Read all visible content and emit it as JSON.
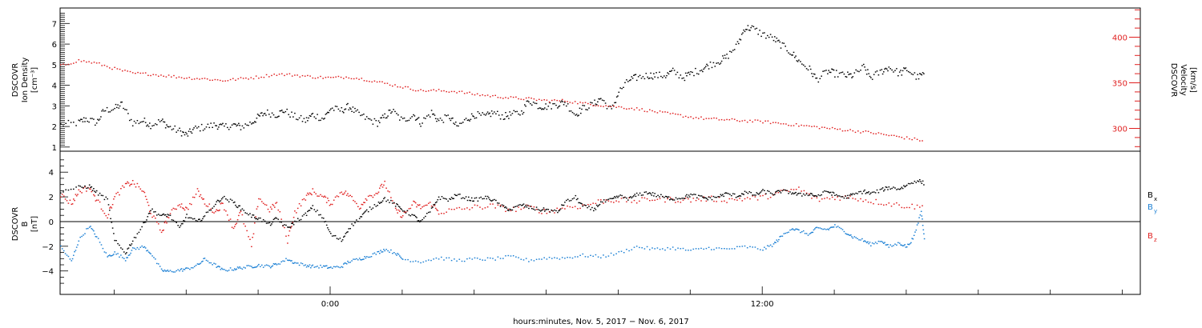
{
  "colors": {
    "axis": "#000000",
    "black_series": "#000000",
    "red_series": "#e02020",
    "blue_series": "#1a7fd4"
  },
  "chart_data": [
    {
      "type": "scatter",
      "panel": "plasma",
      "left_axis": {
        "label_lines": [
          "DSCOVR",
          "Ion Density",
          "[cm⁻³]"
        ],
        "ylim": [
          0.8,
          7.75
        ],
        "ticks": [
          1,
          2,
          3,
          4,
          5,
          6,
          7
        ],
        "tick_labels": [
          "1",
          "2",
          "3",
          "4",
          "5",
          "6",
          "7"
        ]
      },
      "right_axis": {
        "label_lines": [
          "DSCOVR",
          "Velocity",
          "[km/s]"
        ],
        "ylim": [
          275,
          432
        ],
        "ticks": [
          300,
          350,
          400
        ],
        "tick_labels": [
          "300",
          "350",
          "400"
        ],
        "color": "#e02020"
      },
      "x_unit": "hours relative to Nov. 5, 2017 00:00",
      "xlim": [
        -7.5,
        22.5
      ],
      "series": [
        {
          "axis": "left",
          "color": "#000000",
          "x": [
            -7.5,
            -7.0,
            -6.8,
            -6.5,
            -6.3,
            -6.0,
            -5.8,
            -5.5,
            -5.2,
            -5.0,
            -4.7,
            -4.5,
            -4.2,
            -4.0,
            -3.8,
            -3.5,
            -3.2,
            -3.0,
            -2.7,
            -2.5,
            -2.2,
            -2.0,
            -1.8,
            -1.5,
            -1.3,
            -1.0,
            -0.7,
            -0.5,
            -0.2,
            0.0,
            0.3,
            0.5,
            0.7,
            1.0,
            1.3,
            1.5,
            1.7,
            2.0,
            2.3,
            2.5,
            2.8,
            3.0,
            3.3,
            3.5,
            3.8,
            4.0,
            4.3,
            4.5,
            4.8,
            5.0,
            5.3,
            5.5,
            5.8,
            6.0,
            6.3,
            6.5,
            6.8,
            7.0,
            7.3,
            7.5,
            7.8,
            8.0,
            8.3,
            8.5,
            8.8,
            9.0,
            9.3,
            9.5,
            9.8,
            10.0,
            10.3,
            10.5,
            10.8,
            11.0,
            11.3,
            11.5,
            11.7,
            12.0,
            12.3,
            12.5,
            12.8,
            13.0,
            13.3,
            13.5,
            13.8,
            14.0,
            14.3,
            14.5,
            14.8,
            15.0,
            15.3,
            15.5,
            15.8,
            16.0,
            16.3,
            16.5
          ],
          "y": [
            2.1,
            2.2,
            2.4,
            2.2,
            2.8,
            2.9,
            3.1,
            2.2,
            2.3,
            2.1,
            2.3,
            2.0,
            1.8,
            1.6,
            1.9,
            2.0,
            2.1,
            2.0,
            2.1,
            2.0,
            2.2,
            2.5,
            2.7,
            2.6,
            2.8,
            2.5,
            2.3,
            2.6,
            2.4,
            2.9,
            2.8,
            3.0,
            2.7,
            2.4,
            2.2,
            2.5,
            2.8,
            2.3,
            2.6,
            2.2,
            2.7,
            2.3,
            2.5,
            2.0,
            2.4,
            2.6,
            2.5,
            2.7,
            2.5,
            2.6,
            2.7,
            3.3,
            3.0,
            3.0,
            3.1,
            3.2,
            2.6,
            2.9,
            3.1,
            3.4,
            2.8,
            3.7,
            4.3,
            4.4,
            4.5,
            4.5,
            4.5,
            4.7,
            4.4,
            4.6,
            4.8,
            5.0,
            5.2,
            5.4,
            6.0,
            6.8,
            6.8,
            6.5,
            6.3,
            6.0,
            5.6,
            5.2,
            4.8,
            4.3,
            4.7,
            4.6,
            4.5,
            4.5,
            4.9,
            4.4,
            4.7,
            4.9,
            4.6,
            4.8,
            4.4,
            4.6
          ]
        },
        {
          "axis": "right",
          "color": "#e02020",
          "x": [
            -7.5,
            -7.0,
            -6.5,
            -6.0,
            -5.5,
            -5.0,
            -4.5,
            -4.0,
            -3.5,
            -3.0,
            -2.5,
            -2.0,
            -1.5,
            -1.0,
            -0.5,
            0.0,
            0.5,
            1.0,
            1.5,
            2.0,
            2.5,
            3.0,
            3.5,
            4.0,
            4.5,
            5.0,
            5.5,
            6.0,
            6.5,
            7.0,
            7.5,
            8.0,
            8.5,
            9.0,
            9.5,
            10.0,
            10.5,
            11.0,
            11.5,
            12.0,
            12.5,
            13.0,
            13.5,
            14.0,
            14.5,
            15.0,
            15.5,
            16.0,
            16.5
          ],
          "y": [
            369,
            375,
            372,
            366,
            361,
            360,
            358,
            356,
            355,
            353,
            355,
            357,
            360,
            359,
            357,
            356,
            357,
            354,
            350,
            346,
            342,
            342,
            341,
            338,
            336,
            334,
            333,
            331,
            331,
            328,
            326,
            324,
            322,
            319,
            316,
            313,
            311,
            310,
            309,
            308,
            306,
            304,
            302,
            300,
            298,
            296,
            293,
            290,
            287
          ]
        }
      ]
    },
    {
      "type": "scatter",
      "panel": "magnetic field",
      "left_axis": {
        "label_lines": [
          "DSCOVR",
          "B",
          "[nT]"
        ],
        "ylim": [
          -5.9,
          5.7
        ],
        "ticks": [
          -4,
          -2,
          0,
          2,
          4
        ],
        "tick_labels": [
          "−4",
          "−2",
          "0",
          "2",
          "4"
        ]
      },
      "x_axis": {
        "label": "hours:minutes, Nov.  5, 2017 − Nov.  6, 2017",
        "tick_labels": [
          "0:00",
          "12:00"
        ],
        "ticks": [
          0,
          12
        ],
        "minor_step": 2
      },
      "xlim": [
        -7.5,
        22.5
      ],
      "zero_line": 0,
      "series": [
        {
          "name": "B",
          "subscript": "x",
          "color": "#000000",
          "x": [
            -7.5,
            -7.0,
            -6.7,
            -6.5,
            -6.2,
            -6.0,
            -5.7,
            -5.5,
            -5.2,
            -5.0,
            -4.7,
            -4.5,
            -4.2,
            -4.0,
            -3.7,
            -3.5,
            -3.2,
            -3.0,
            -2.7,
            -2.5,
            -2.2,
            -2.0,
            -1.7,
            -1.5,
            -1.2,
            -1.0,
            -0.7,
            -0.5,
            -0.2,
            0.0,
            0.3,
            0.5,
            0.8,
            1.0,
            1.3,
            1.5,
            1.8,
            2.0,
            2.3,
            2.5,
            2.8,
            3.0,
            3.3,
            3.5,
            3.8,
            4.0,
            4.3,
            4.5,
            4.8,
            5.0,
            5.3,
            5.5,
            5.8,
            6.0,
            6.3,
            6.5,
            6.8,
            7.0,
            7.3,
            7.5,
            7.8,
            8.0,
            8.3,
            8.5,
            8.8,
            9.0,
            9.3,
            9.5,
            9.8,
            10.0,
            10.3,
            10.5,
            10.8,
            11.0,
            11.3,
            11.5,
            11.8,
            12.0,
            12.3,
            12.5,
            12.8,
            13.0,
            13.3,
            13.5,
            13.8,
            14.0,
            14.3,
            14.5,
            14.8,
            15.0,
            15.3,
            15.5,
            15.8,
            16.0,
            16.3,
            16.5
          ],
          "y": [
            2.5,
            2.8,
            2.9,
            2.4,
            1.8,
            -1.5,
            -2.5,
            -1.5,
            -0.2,
            1.0,
            0.5,
            0.6,
            -0.5,
            0.5,
            0.0,
            0.5,
            1.5,
            2.0,
            1.6,
            1.1,
            0.5,
            0.3,
            -0.2,
            0.3,
            -0.5,
            0.0,
            0.6,
            1.2,
            0.3,
            -1.0,
            -1.5,
            -0.5,
            0.3,
            0.9,
            1.5,
            1.9,
            1.4,
            1.0,
            0.5,
            0.0,
            1.0,
            2.0,
            1.8,
            2.2,
            1.9,
            1.8,
            2.0,
            1.8,
            1.2,
            1.0,
            1.4,
            1.2,
            1.0,
            1.0,
            0.8,
            1.6,
            2.0,
            1.3,
            1.0,
            1.6,
            1.8,
            2.1,
            1.9,
            2.2,
            2.4,
            2.2,
            2.0,
            1.9,
            2.0,
            2.2,
            2.0,
            1.9,
            2.1,
            2.3,
            2.1,
            2.4,
            2.2,
            2.5,
            2.3,
            2.5,
            2.4,
            2.2,
            2.3,
            2.1,
            2.5,
            2.2,
            2.0,
            2.2,
            2.5,
            2.3,
            2.6,
            2.8,
            2.7,
            3.0,
            3.4,
            3.1
          ]
        },
        {
          "name": "B",
          "subscript": "y",
          "color": "#1a7fd4",
          "x": [
            -7.5,
            -7.2,
            -7.0,
            -6.7,
            -6.5,
            -6.2,
            -6.0,
            -5.7,
            -5.5,
            -5.2,
            -5.0,
            -4.7,
            -4.5,
            -4.2,
            -4.0,
            -3.7,
            -3.5,
            -3.2,
            -3.0,
            -2.7,
            -2.5,
            -2.2,
            -2.0,
            -1.7,
            -1.5,
            -1.2,
            -1.0,
            -0.7,
            -0.5,
            -0.2,
            0.0,
            0.3,
            0.5,
            0.8,
            1.0,
            1.3,
            1.5,
            1.8,
            2.0,
            2.5,
            3.0,
            3.5,
            4.0,
            4.5,
            5.0,
            5.5,
            6.0,
            6.5,
            7.0,
            7.5,
            8.0,
            8.5,
            9.0,
            9.5,
            10.0,
            10.5,
            11.0,
            11.5,
            12.0,
            12.3,
            12.5,
            12.8,
            13.0,
            13.3,
            13.5,
            13.8,
            14.0,
            14.3,
            14.5,
            14.8,
            15.0,
            15.3,
            15.5,
            15.8,
            16.0,
            16.2,
            16.4,
            16.5
          ],
          "y": [
            -2.0,
            -3.2,
            -1.5,
            -0.3,
            -1.2,
            -2.8,
            -2.5,
            -3.0,
            -2.2,
            -2.0,
            -2.5,
            -3.9,
            -4.0,
            -3.9,
            -3.8,
            -3.5,
            -3.0,
            -3.5,
            -3.9,
            -3.8,
            -3.7,
            -3.6,
            -3.5,
            -3.6,
            -3.4,
            -3.0,
            -3.3,
            -3.5,
            -3.6,
            -3.6,
            -3.7,
            -3.6,
            -3.2,
            -3.0,
            -2.8,
            -2.5,
            -2.2,
            -2.5,
            -3.0,
            -3.2,
            -2.9,
            -3.1,
            -3.0,
            -3.0,
            -2.8,
            -3.1,
            -2.9,
            -2.9,
            -2.7,
            -2.8,
            -2.5,
            -2.0,
            -2.2,
            -2.1,
            -2.3,
            -2.1,
            -2.2,
            -2.0,
            -2.2,
            -1.8,
            -1.2,
            -0.5,
            -0.7,
            -1.0,
            -0.5,
            -0.6,
            -0.3,
            -0.8,
            -1.2,
            -1.5,
            -1.8,
            -1.5,
            -2.0,
            -1.7,
            -2.0,
            -1.2,
            0.9,
            -1.6
          ]
        },
        {
          "name": "B",
          "subscript": "z",
          "color": "#e02020",
          "x": [
            -7.5,
            -7.2,
            -7.0,
            -6.7,
            -6.5,
            -6.2,
            -6.0,
            -5.7,
            -5.5,
            -5.2,
            -5.0,
            -4.7,
            -4.5,
            -4.2,
            -4.0,
            -3.7,
            -3.5,
            -3.2,
            -3.0,
            -2.7,
            -2.5,
            -2.2,
            -2.0,
            -1.7,
            -1.5,
            -1.2,
            -1.0,
            -0.7,
            -0.5,
            -0.2,
            0.0,
            0.3,
            0.5,
            0.8,
            1.0,
            1.3,
            1.5,
            1.8,
            2.0,
            2.3,
            2.5,
            2.8,
            3.0,
            3.5,
            4.0,
            4.5,
            5.0,
            5.5,
            6.0,
            6.5,
            7.0,
            7.5,
            8.0,
            8.5,
            9.0,
            9.5,
            10.0,
            10.5,
            11.0,
            11.5,
            12.0,
            12.5,
            13.0,
            13.5,
            14.0,
            14.5,
            15.0,
            15.5,
            16.0,
            16.5
          ],
          "y": [
            2.2,
            1.5,
            2.5,
            2.8,
            1.8,
            0.5,
            2.0,
            3.0,
            3.2,
            2.5,
            0.8,
            -0.8,
            0.5,
            1.5,
            1.0,
            2.5,
            1.6,
            0.8,
            1.5,
            -0.5,
            0.8,
            -2.0,
            2.0,
            1.0,
            1.5,
            -1.5,
            0.8,
            2.0,
            2.5,
            2.0,
            1.5,
            2.5,
            2.2,
            1.2,
            2.0,
            2.4,
            3.2,
            1.0,
            0.5,
            1.5,
            1.2,
            1.5,
            0.8,
            1.0,
            1.2,
            1.3,
            1.0,
            1.2,
            0.8,
            1.2,
            1.3,
            1.7,
            1.8,
            1.7,
            1.9,
            1.8,
            1.8,
            1.9,
            1.8,
            1.9,
            2.0,
            2.4,
            2.7,
            1.8,
            2.0,
            2.0,
            1.7,
            1.5,
            1.3,
            1.2
          ]
        }
      ]
    }
  ]
}
